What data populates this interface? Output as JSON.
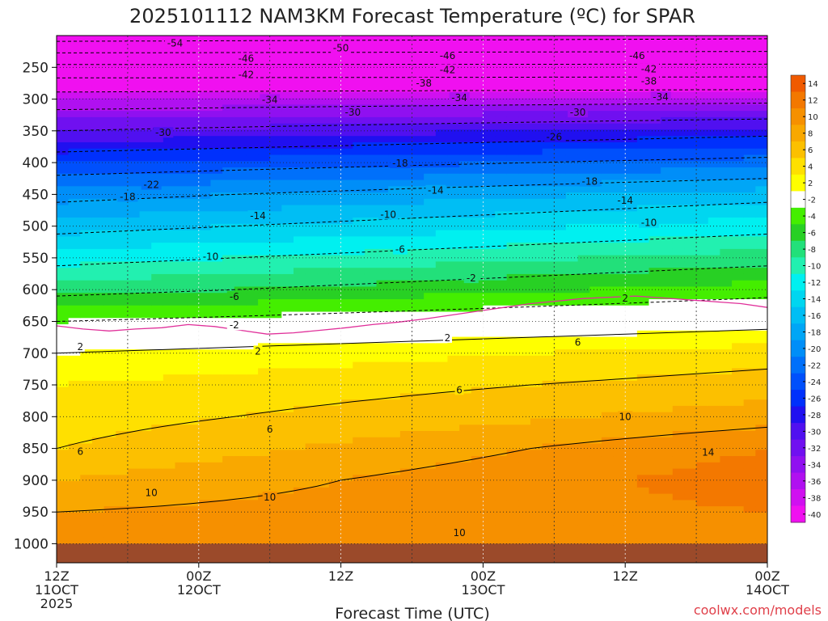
{
  "title": "2025101112 NAM3KM Forecast Temperature (ºC) for SPAR",
  "xlabel": "Forecast Time (UTC)",
  "credit": "coolwx.com/models",
  "colors": {
    "ground": "#9b4a2a",
    "freezing_line": "#e0309a",
    "contour": "#000000"
  },
  "chart_data": {
    "type": "heatmap",
    "variable": "Temperature",
    "units": "ºC",
    "y_axis": {
      "label": "",
      "ticks": [
        250,
        300,
        350,
        400,
        450,
        500,
        550,
        600,
        650,
        700,
        750,
        800,
        850,
        900,
        950,
        1000
      ],
      "range": [
        200,
        1030
      ]
    },
    "x_axis": {
      "ticks": [
        {
          "hour": 0,
          "line1": "12Z",
          "line2": "11OCT",
          "line3": "2025"
        },
        {
          "hour": 12,
          "line1": "00Z",
          "line2": "12OCT",
          "line3": ""
        },
        {
          "hour": 24,
          "line1": "12Z",
          "line2": "",
          "line3": ""
        },
        {
          "hour": 36,
          "line1": "00Z",
          "line2": "13OCT",
          "line3": ""
        },
        {
          "hour": 48,
          "line1": "12Z",
          "line2": "",
          "line3": ""
        },
        {
          "hour": 60,
          "line1": "00Z",
          "line2": "14OCT",
          "line3": ""
        }
      ],
      "range": [
        0,
        60
      ]
    },
    "colorbar": {
      "ticks": [
        14,
        12,
        10,
        8,
        6,
        4,
        2,
        -2,
        -4,
        -6,
        -8,
        -10,
        -12,
        -14,
        -16,
        -18,
        -20,
        -22,
        -24,
        -26,
        -28,
        -30,
        -32,
        -34,
        -36,
        -38,
        -40
      ],
      "colors": [
        "#f05a00",
        "#f37800",
        "#f69000",
        "#f9a800",
        "#fcc000",
        "#ffe000",
        "#ffff00",
        "#ffffff",
        "#44ee00",
        "#28d024",
        "#22e07a",
        "#22f0b0",
        "#00f0f0",
        "#00d6f0",
        "#00bef4",
        "#00a6f6",
        "#008ef8",
        "#0070fa",
        "#0050fc",
        "#0030fc",
        "#2010f0",
        "#5010f0",
        "#7010f0",
        "#9010f0",
        "#b010f0",
        "#d010f0",
        "#f010f0"
      ]
    },
    "temperature_levels": [
      {
        "p": 200,
        "t_start": -56,
        "t_end": -55
      },
      {
        "p": 250,
        "t_start": -45,
        "t_end": -45
      },
      {
        "p": 300,
        "t_start": -36,
        "t_end": -35
      },
      {
        "p": 350,
        "t_start": -30,
        "t_end": -27
      },
      {
        "p": 400,
        "t_start": -24,
        "t_end": -21
      },
      {
        "p": 450,
        "t_start": -19,
        "t_end": -15
      },
      {
        "p": 500,
        "t_start": -15,
        "t_end": -11
      },
      {
        "p": 550,
        "t_start": -11,
        "t_end": -7
      },
      {
        "p": 600,
        "t_start": -7,
        "t_end": -3
      },
      {
        "p": 650,
        "t_start": -2,
        "t_end": 1
      },
      {
        "p": 700,
        "t_start": 2,
        "t_end": 5
      },
      {
        "p": 750,
        "t_start": 4,
        "t_end": 7
      },
      {
        "p": 800,
        "t_start": 5,
        "t_end": 9
      },
      {
        "p": 850,
        "t_start": 6,
        "t_end": 12
      },
      {
        "p": 900,
        "t_start": 8,
        "t_end": 13
      },
      {
        "p": 950,
        "t_start": 10,
        "t_end": 12
      },
      {
        "p": 1000,
        "t_start": 12,
        "t_end": 12
      }
    ],
    "contour_labels": [
      {
        "text": "-54",
        "hour": 10,
        "p": 212
      },
      {
        "text": "-50",
        "hour": 24,
        "p": 220
      },
      {
        "text": "-46",
        "hour": 16,
        "p": 236
      },
      {
        "text": "-46",
        "hour": 33,
        "p": 232
      },
      {
        "text": "-46",
        "hour": 49,
        "p": 232
      },
      {
        "text": "-42",
        "hour": 16,
        "p": 262
      },
      {
        "text": "-42",
        "hour": 33,
        "p": 254
      },
      {
        "text": "-42",
        "hour": 50,
        "p": 253
      },
      {
        "text": "-38",
        "hour": 31,
        "p": 275
      },
      {
        "text": "-38",
        "hour": 50,
        "p": 272
      },
      {
        "text": "-34",
        "hour": 18,
        "p": 301
      },
      {
        "text": "-34",
        "hour": 34,
        "p": 298
      },
      {
        "text": "-34",
        "hour": 51,
        "p": 297
      },
      {
        "text": "-30",
        "hour": 25,
        "p": 321
      },
      {
        "text": "-30",
        "hour": 44,
        "p": 321
      },
      {
        "text": "-30",
        "hour": 9,
        "p": 353
      },
      {
        "text": "-26",
        "hour": 42,
        "p": 360
      },
      {
        "text": "-18",
        "hour": 29,
        "p": 401
      },
      {
        "text": "-22",
        "hour": 8,
        "p": 435
      },
      {
        "text": "-18",
        "hour": 45,
        "p": 430
      },
      {
        "text": "-18",
        "hour": 6,
        "p": 454
      },
      {
        "text": "-14",
        "hour": 32,
        "p": 444
      },
      {
        "text": "-14",
        "hour": 48,
        "p": 460
      },
      {
        "text": "-14",
        "hour": 17,
        "p": 484
      },
      {
        "text": "-10",
        "hour": 28,
        "p": 482
      },
      {
        "text": "-10",
        "hour": 50,
        "p": 495
      },
      {
        "text": "-10",
        "hour": 13,
        "p": 548
      },
      {
        "text": "-6",
        "hour": 29,
        "p": 537
      },
      {
        "text": "-6",
        "hour": 15,
        "p": 611
      },
      {
        "text": "-2",
        "hour": 35,
        "p": 582
      },
      {
        "text": "-2",
        "hour": 15,
        "p": 656
      },
      {
        "text": "2",
        "hour": 48,
        "p": 614
      },
      {
        "text": "2",
        "hour": 33,
        "p": 676
      },
      {
        "text": "2",
        "hour": 2,
        "p": 690
      },
      {
        "text": "2",
        "hour": 17,
        "p": 697
      },
      {
        "text": "6",
        "hour": 44,
        "p": 683
      },
      {
        "text": "6",
        "hour": 34,
        "p": 758
      },
      {
        "text": "6",
        "hour": 18,
        "p": 820
      },
      {
        "text": "6",
        "hour": 2,
        "p": 855
      },
      {
        "text": "10",
        "hour": 48,
        "p": 800
      },
      {
        "text": "10",
        "hour": 8,
        "p": 920
      },
      {
        "text": "10",
        "hour": 18,
        "p": 927
      },
      {
        "text": "10",
        "hour": 34,
        "p": 983
      },
      {
        "text": "14",
        "hour": 55,
        "p": 856
      }
    ],
    "freezing_line_p": [
      657,
      662,
      665,
      662,
      660,
      655,
      658,
      664,
      670,
      668,
      664,
      660,
      655,
      651,
      646,
      640,
      634,
      628,
      622,
      618,
      614,
      612,
      610,
      613,
      616,
      619,
      622,
      628
    ]
  }
}
